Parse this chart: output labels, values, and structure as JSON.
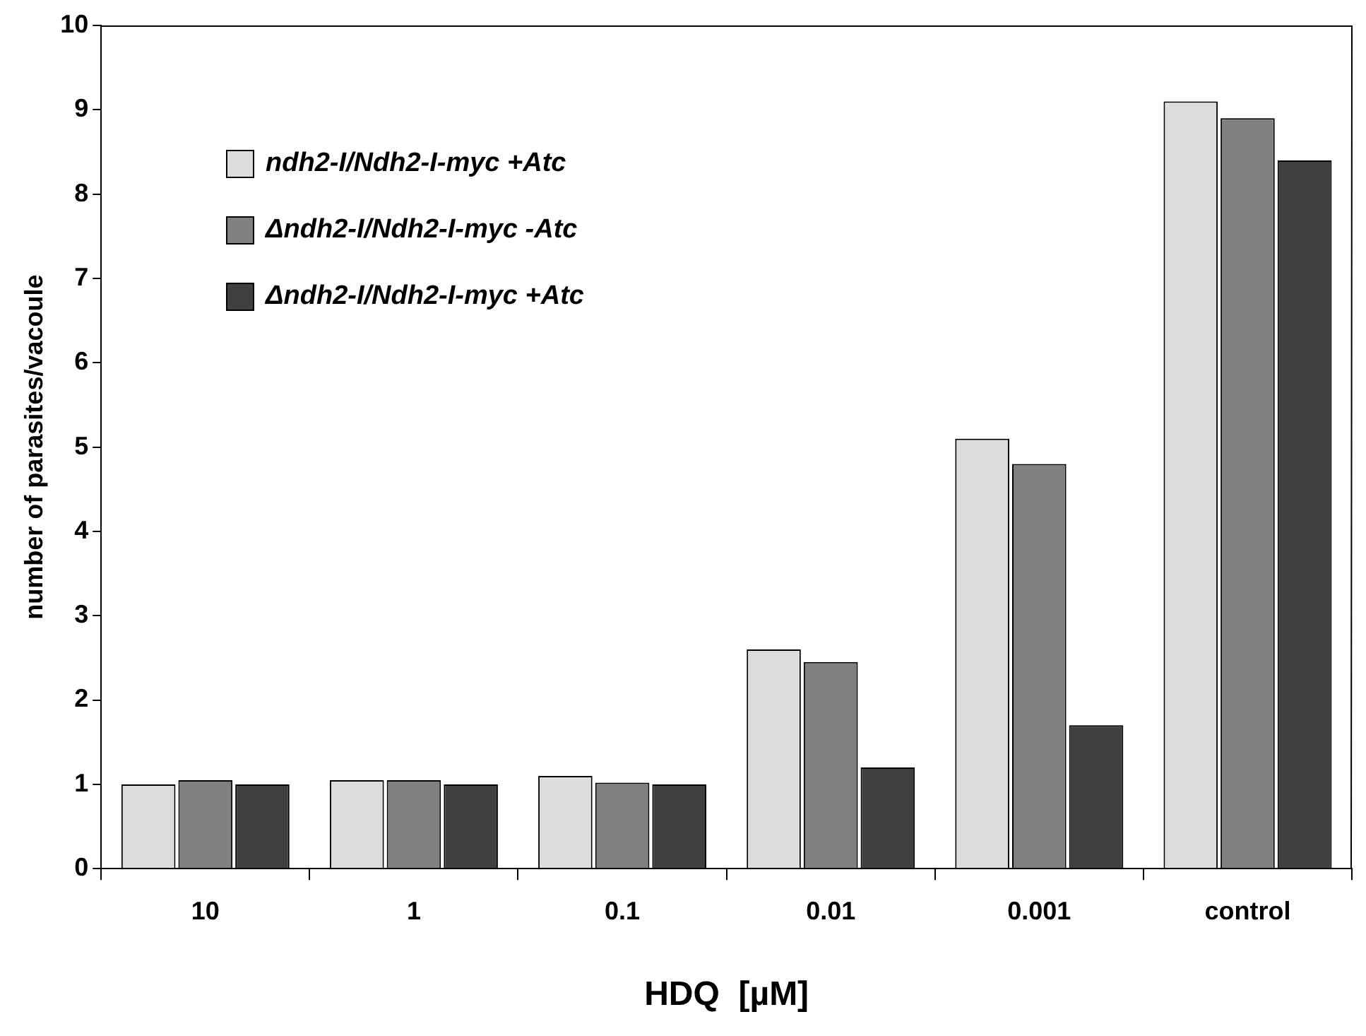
{
  "chart_data": {
    "type": "bar",
    "xlabel": "HDQ  [µM]",
    "ylabel": "number of parasites/vacoule",
    "categories": [
      "10",
      "1",
      "0.1",
      "0.01",
      "0.001",
      "control"
    ],
    "series": [
      {
        "name": "ndh2-I/Ndh2-I-myc +Atc",
        "color": "#dcdcdc",
        "values": [
          1.0,
          1.05,
          1.1,
          2.6,
          5.1,
          9.1
        ]
      },
      {
        "name": "Δndh2-I/Ndh2-I-myc -Atc",
        "color": "#808080",
        "values": [
          1.05,
          1.05,
          1.02,
          2.45,
          4.8,
          8.9
        ]
      },
      {
        "name": "Δndh2-I/Ndh2-I-myc +Atc",
        "color": "#404040",
        "values": [
          1.0,
          1.0,
          1.0,
          1.2,
          1.7,
          8.4
        ]
      }
    ],
    "ylim": [
      0,
      10
    ],
    "yticks": [
      0,
      1,
      2,
      3,
      4,
      5,
      6,
      7,
      8,
      9,
      10
    ],
    "grid": false,
    "legend": "top left"
  }
}
